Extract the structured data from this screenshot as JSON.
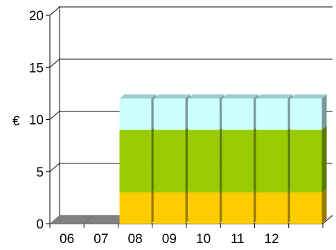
{
  "chart_data": {
    "type": "bar",
    "stacked": true,
    "three_d": true,
    "title": "",
    "xlabel": "",
    "ylabel": "€",
    "ylim": [
      0,
      20
    ],
    "yticks": [
      0,
      5,
      10,
      15,
      20
    ],
    "grid": true,
    "legend": "none",
    "categories": [
      "06",
      "07",
      "08",
      "09",
      "10",
      "11",
      "12",
      ""
    ],
    "series": [
      {
        "values": [
          0,
          0,
          3,
          3,
          3,
          3,
          3,
          3
        ],
        "color": "#ffcc00"
      },
      {
        "values": [
          0,
          0,
          6,
          6,
          6,
          6,
          6,
          6
        ],
        "color": "#99cc00"
      },
      {
        "values": [
          0,
          0,
          3,
          3,
          3,
          3,
          3,
          3
        ],
        "color": "#ccffff"
      }
    ],
    "floor_color": "#808080"
  }
}
